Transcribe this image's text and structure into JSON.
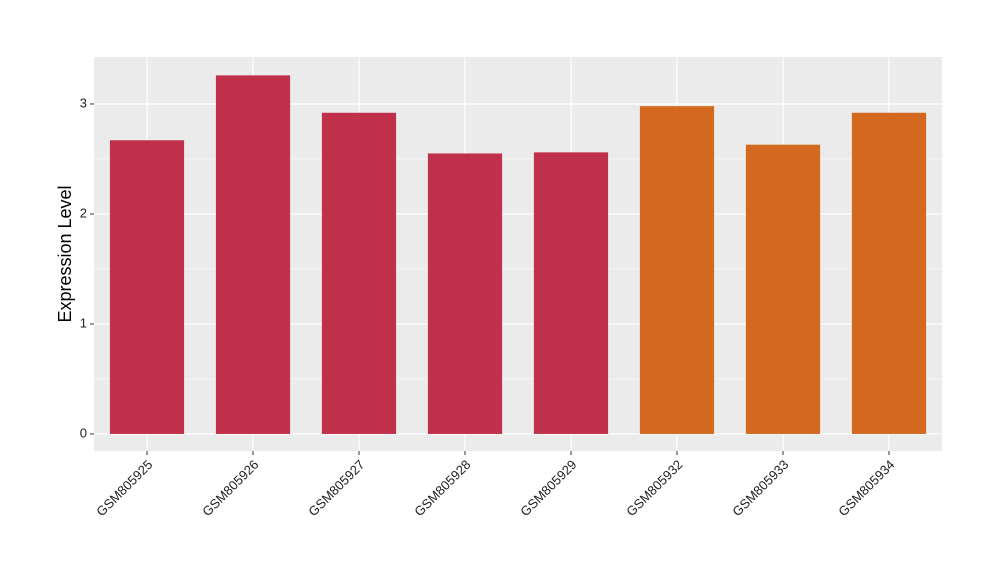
{
  "chart_data": {
    "type": "bar",
    "ylabel": "Expression Level",
    "categories": [
      "GSM805925",
      "GSM805926",
      "GSM805927",
      "GSM805928",
      "GSM805929",
      "GSM805932",
      "GSM805933",
      "GSM805934"
    ],
    "values": [
      2.67,
      3.26,
      2.92,
      2.55,
      2.56,
      2.98,
      2.63,
      2.92
    ],
    "colors": [
      "#c1304a",
      "#c1304a",
      "#c1304a",
      "#c1304a",
      "#c1304a",
      "#d2691f",
      "#d2691f",
      "#d2691f"
    ],
    "ylim": [
      -0.155,
      3.427
    ],
    "yticks": [
      0,
      1,
      2,
      3
    ],
    "grid": true
  }
}
